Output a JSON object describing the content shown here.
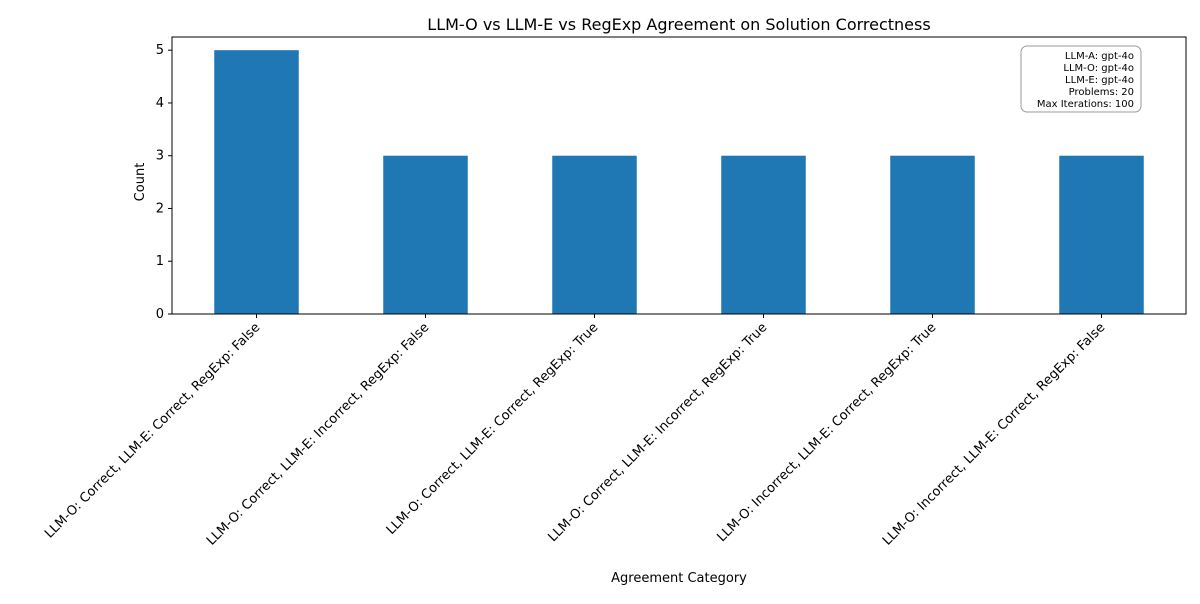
{
  "chart_data": {
    "type": "bar",
    "title": "LLM-O vs LLM-E vs RegExp Agreement on Solution Correctness",
    "xlabel": "Agreement Category",
    "ylabel": "Count",
    "categories": [
      "LLM-O: Correct, LLM-E: Correct, RegExp: False",
      "LLM-O: Correct, LLM-E: Incorrect, RegExp: False",
      "LLM-O: Correct, LLM-E: Correct, RegExp: True",
      "LLM-O: Correct, LLM-E: Incorrect, RegExp: True",
      "LLM-O: Incorrect, LLM-E: Correct, RegExp: True",
      "LLM-O: Incorrect, LLM-E: Correct, RegExp: False"
    ],
    "values": [
      5,
      3,
      3,
      3,
      3,
      3
    ],
    "ylim": [
      0,
      5.25
    ],
    "yticks": [
      0,
      1,
      2,
      3,
      4,
      5
    ],
    "bar_color": "#1f77b4",
    "grid": false,
    "legend": "none"
  },
  "info_box": {
    "placement": "top-right",
    "lines": [
      "LLM-A: gpt-4o",
      "LLM-O: gpt-4o",
      "LLM-E: gpt-4o",
      "Problems: 20",
      "Max Iterations: 100"
    ]
  }
}
